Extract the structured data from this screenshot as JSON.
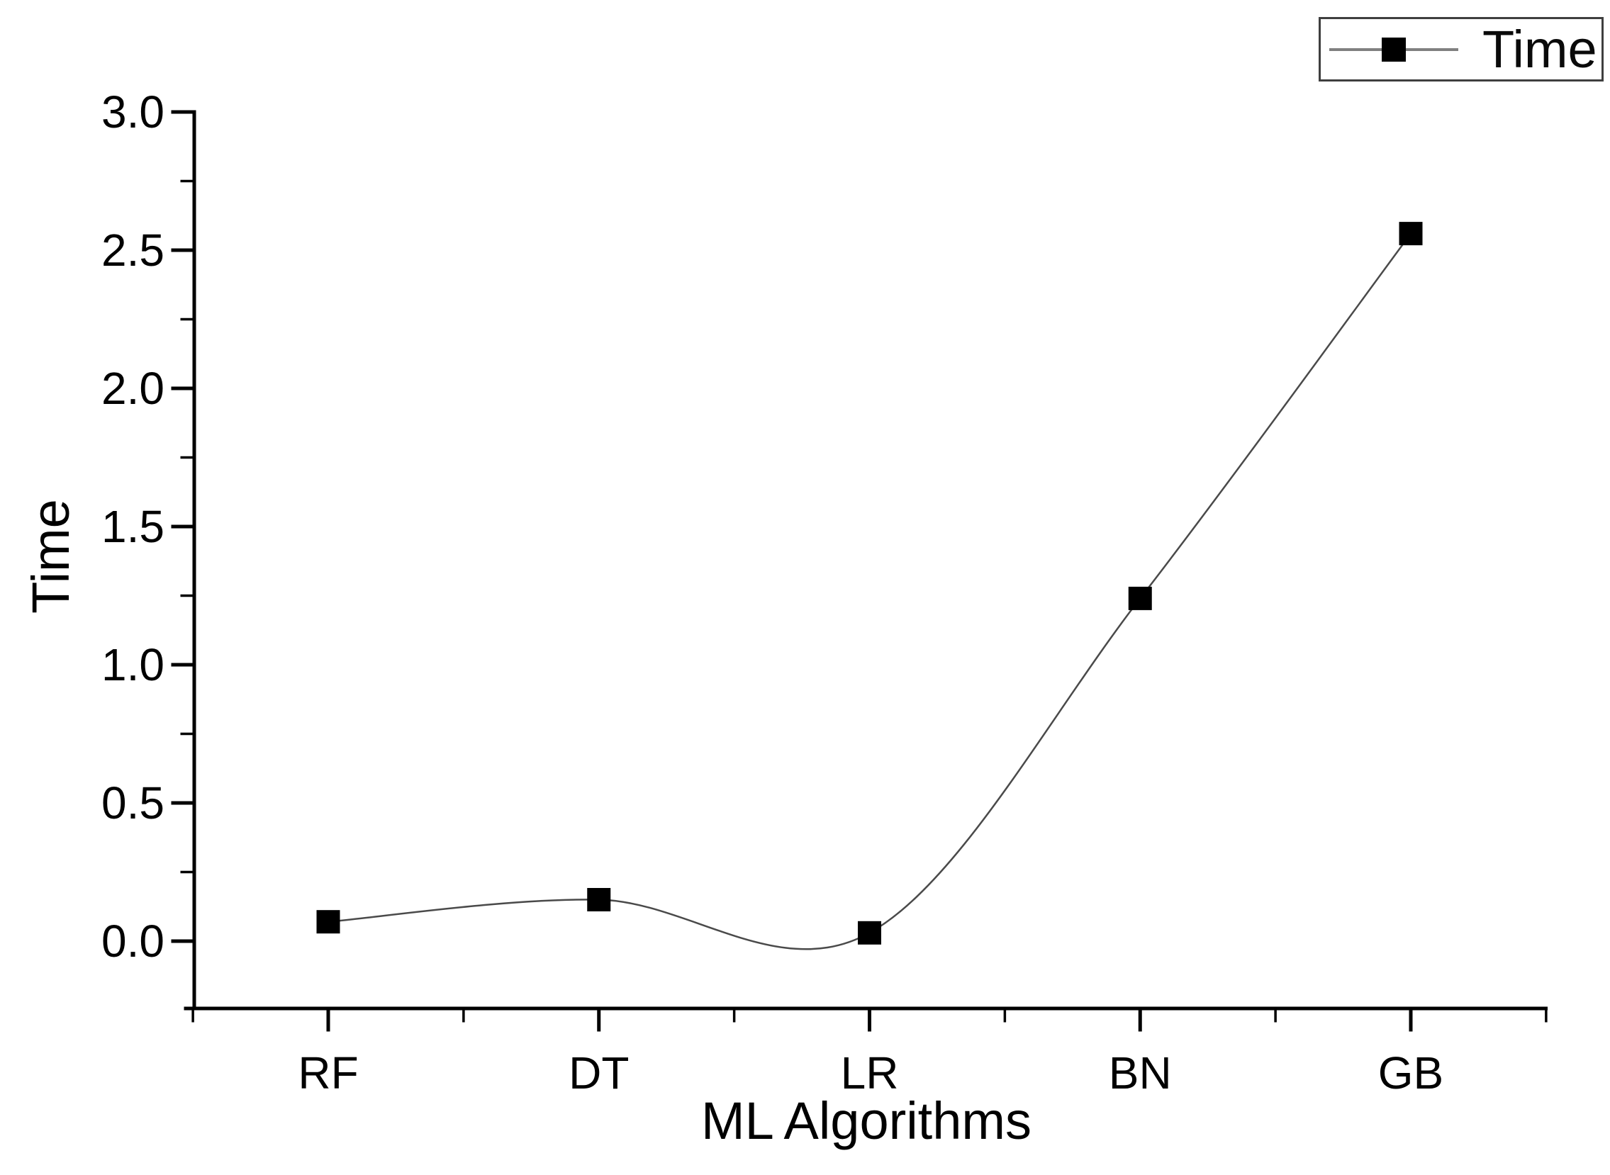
{
  "legend": {
    "label": "Time"
  },
  "colors": {
    "background": "#ffffff",
    "axis": "#000000",
    "text": "#000000",
    "curve": "#4a4a4a",
    "marker": "#000000",
    "legend_line": "#808080"
  },
  "chart_data": {
    "type": "line",
    "title": "",
    "xlabel": "ML Algorithms",
    "ylabel": "Time",
    "categories": [
      "RF",
      "DT",
      "LR",
      "BN",
      "GB"
    ],
    "series": [
      {
        "name": "Time",
        "values": [
          0.07,
          0.15,
          0.03,
          1.24,
          2.56
        ],
        "marker": "filled-square",
        "line_style": "smooth-spline"
      }
    ],
    "ylim": [
      -0.25,
      3.0
    ],
    "xlim_category_units": [
      0.5,
      5.5
    ],
    "y_major_tick_labels": [
      "3.0",
      "2.5",
      "2.0",
      "1.5",
      "1.0",
      "0.5",
      "0.0"
    ],
    "y_major_tick_values": [
      3.0,
      2.5,
      2.0,
      1.5,
      1.0,
      0.5,
      0.0
    ],
    "y_minor_step": 0.25,
    "x_minor_positions_category_units": [
      1.5,
      2.5,
      3.5,
      4.5
    ],
    "grid": false,
    "legend_position": "top-right",
    "axes_shown": [
      "left",
      "bottom"
    ]
  }
}
